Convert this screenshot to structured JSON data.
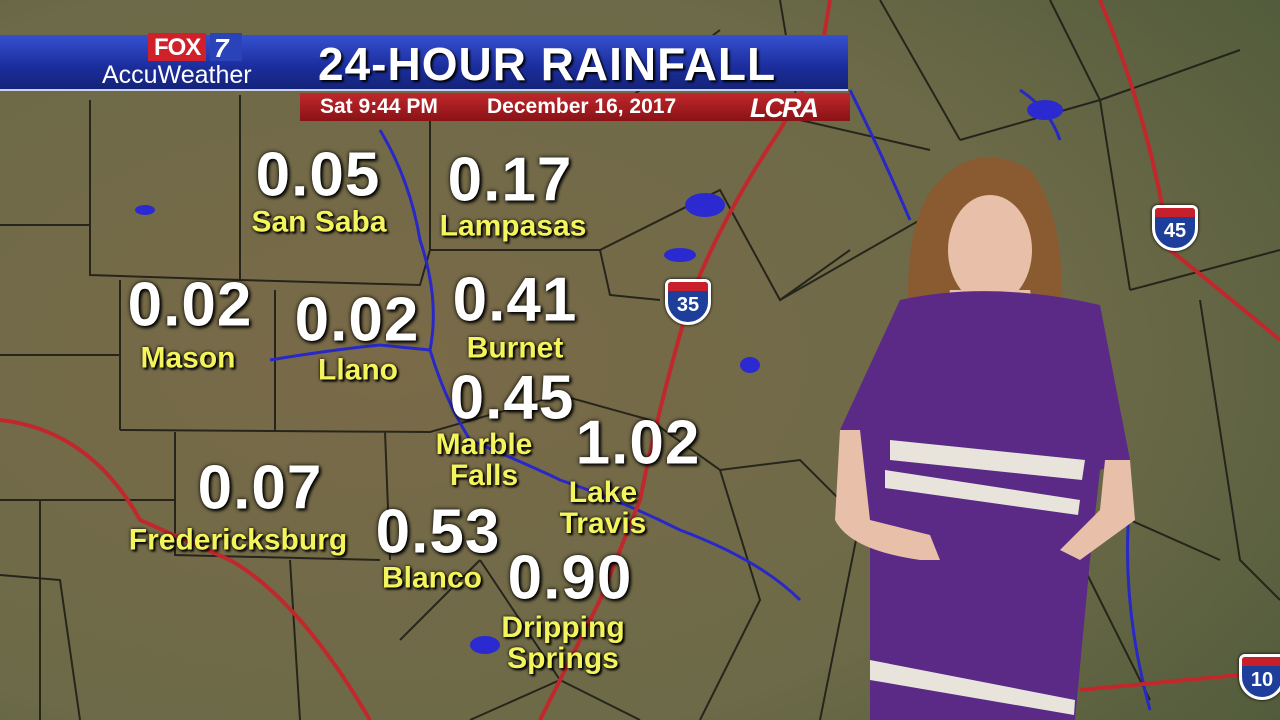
{
  "header": {
    "network": "FOX",
    "channel": "7",
    "brand": "AccuWeather",
    "title": "24-HOUR RAINFALL",
    "time": "Sat 9:44 PM",
    "date": "December 16, 2017",
    "sponsor": "LCRA"
  },
  "rainfall": [
    {
      "value": "0.05",
      "place": "San Saba"
    },
    {
      "value": "0.17",
      "place": "Lampasas"
    },
    {
      "value": "0.02",
      "place": "Mason"
    },
    {
      "value": "0.02",
      "place": "Llano"
    },
    {
      "value": "0.41",
      "place": "Burnet"
    },
    {
      "value": "0.45",
      "place": "Marble Falls"
    },
    {
      "value": "1.02",
      "place": "Lake Travis"
    },
    {
      "value": "0.07",
      "place": "Fredericksburg"
    },
    {
      "value": "0.53",
      "place": "Blanco"
    },
    {
      "value": "0.90",
      "place": "Dripping Springs"
    }
  ],
  "interstates": [
    "35",
    "45",
    "10"
  ],
  "colors": {
    "value": "#ffffff",
    "place": "#f4f45c",
    "banner_blue": "#1b2d9c",
    "banner_red": "#b0202a",
    "highway": "#c0282c",
    "water": "#2a2ad0"
  }
}
